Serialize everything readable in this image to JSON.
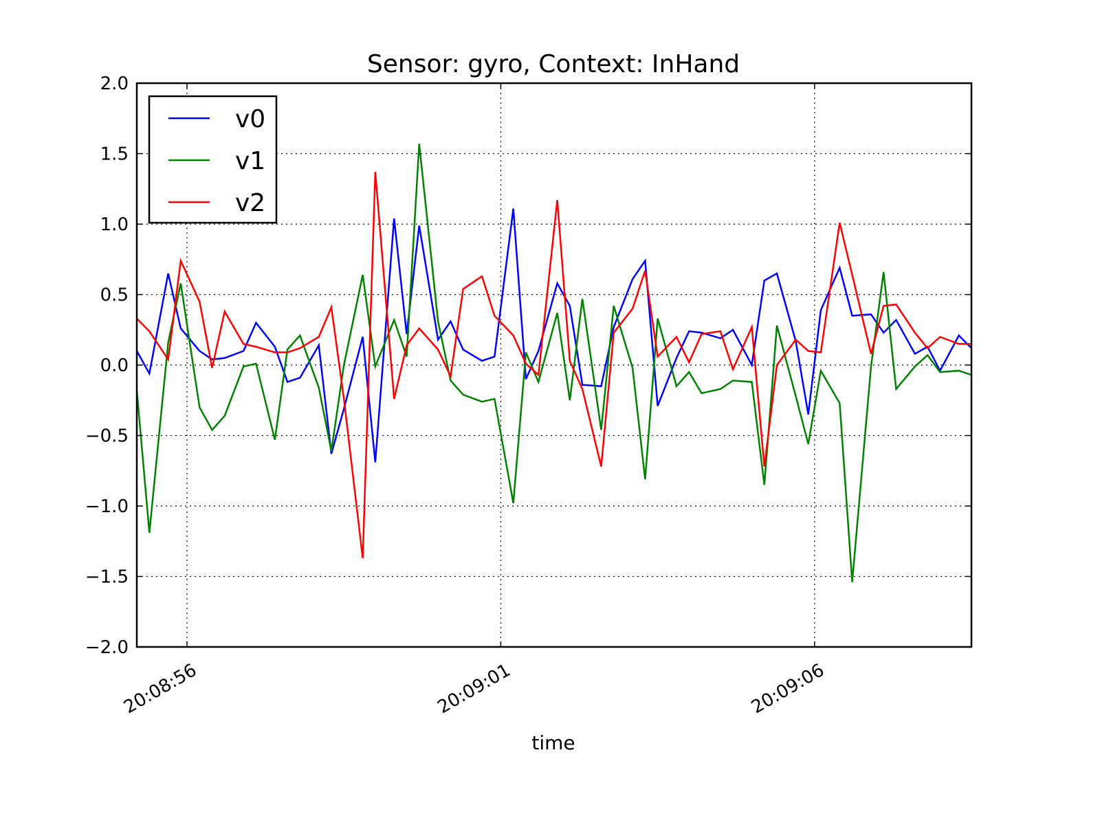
{
  "chart_data": {
    "type": "line",
    "title": "Sensor: gyro,  Context: InHand",
    "xlabel": "time",
    "ylabel": "",
    "ylim": [
      -2.0,
      2.0
    ],
    "yticks": [
      2.0,
      1.5,
      1.0,
      0.5,
      0.0,
      -0.5,
      -1.0,
      -1.5,
      -2.0
    ],
    "ytick_labels": [
      "2.0",
      "1.5",
      "1.0",
      "0.5",
      "0.0",
      "−0.5",
      "−1.0",
      "−1.5",
      "−2.0"
    ],
    "xlim": [
      "20:08:55.2",
      "20:09:08.5"
    ],
    "xticks": [
      "20:08:56",
      "20:09:01",
      "20:09:06"
    ],
    "grid": true,
    "legend_position": "top-left",
    "x": [
      "20:08:55.2",
      "20:08:55.4",
      "20:08:55.7",
      "20:08:55.9",
      "20:08:56.2",
      "20:08:56.4",
      "20:08:56.6",
      "20:08:56.9",
      "20:08:57.1",
      "20:08:57.4",
      "20:08:57.6",
      "20:08:57.8",
      "20:08:58.1",
      "20:08:58.3",
      "20:08:58.5",
      "20:08:58.8",
      "20:08:59.0",
      "20:08:59.3",
      "20:08:59.5",
      "20:08:59.7",
      "20:09:00.0",
      "20:09:00.2",
      "20:09:00.4",
      "20:09:00.7",
      "20:09:00.9",
      "20:09:01.2",
      "20:09:01.4",
      "20:09:01.6",
      "20:09:01.9",
      "20:09:02.1",
      "20:09:02.3",
      "20:09:02.6",
      "20:09:02.8",
      "20:09:03.1",
      "20:09:03.3",
      "20:09:03.5",
      "20:09:03.8",
      "20:09:04.0",
      "20:09:04.2",
      "20:09:04.5",
      "20:09:04.7",
      "20:09:05.0",
      "20:09:05.2",
      "20:09:05.4",
      "20:09:05.7",
      "20:09:05.9",
      "20:09:06.1",
      "20:09:06.4",
      "20:09:06.6",
      "20:09:06.9",
      "20:09:07.1",
      "20:09:07.3",
      "20:09:07.6",
      "20:09:07.8",
      "20:09:08.0",
      "20:09:08.3",
      "20:09:08.5"
    ],
    "series": [
      {
        "name": "v0",
        "color": "#0000ff",
        "values": [
          0.1,
          -0.06,
          0.65,
          0.26,
          0.1,
          0.04,
          0.05,
          0.1,
          0.3,
          0.13,
          -0.12,
          -0.09,
          0.14,
          -0.63,
          -0.31,
          0.2,
          -0.69,
          1.04,
          0.22,
          0.99,
          0.18,
          0.31,
          0.11,
          0.03,
          0.06,
          1.11,
          -0.1,
          0.1,
          0.58,
          0.42,
          -0.14,
          -0.15,
          0.27,
          0.61,
          0.74,
          -0.29,
          0.05,
          0.24,
          0.23,
          0.19,
          0.25,
          0.0,
          0.6,
          0.65,
          0.17,
          -0.35,
          0.39,
          0.69,
          0.35,
          0.36,
          0.23,
          0.32,
          0.08,
          0.13,
          -0.04,
          0.21,
          0.12
        ]
      },
      {
        "name": "v1",
        "color": "#008000",
        "values": [
          -0.18,
          -1.19,
          0.16,
          0.58,
          -0.3,
          -0.46,
          -0.36,
          -0.01,
          0.01,
          -0.53,
          0.11,
          0.21,
          -0.16,
          -0.61,
          0.0,
          0.64,
          -0.01,
          0.32,
          0.06,
          1.57,
          0.31,
          -0.11,
          -0.21,
          -0.26,
          -0.24,
          -0.98,
          0.09,
          -0.12,
          0.37,
          -0.25,
          0.47,
          -0.46,
          0.42,
          -0.02,
          -0.81,
          0.33,
          -0.15,
          -0.05,
          -0.2,
          -0.17,
          -0.11,
          -0.12,
          -0.85,
          0.28,
          -0.22,
          -0.56,
          -0.04,
          -0.27,
          -1.54,
          -0.01,
          0.66,
          -0.17,
          -0.01,
          0.07,
          -0.05,
          -0.04,
          -0.07
        ]
      },
      {
        "name": "v2",
        "color": "#ff0000",
        "values": [
          0.33,
          0.24,
          0.04,
          0.74,
          0.45,
          -0.02,
          0.38,
          0.15,
          0.13,
          0.09,
          0.09,
          0.12,
          0.2,
          0.41,
          -0.24,
          -1.37,
          1.37,
          -0.24,
          0.14,
          0.26,
          0.11,
          -0.08,
          0.54,
          0.63,
          0.35,
          0.21,
          0.01,
          -0.07,
          1.17,
          0.03,
          -0.17,
          -0.72,
          0.23,
          0.4,
          0.67,
          0.06,
          0.2,
          0.02,
          0.22,
          0.24,
          -0.03,
          0.27,
          -0.72,
          0.0,
          0.18,
          0.1,
          0.09,
          1.01,
          0.64,
          0.08,
          0.42,
          0.43,
          0.23,
          0.12,
          0.2,
          0.15,
          0.15
        ]
      }
    ]
  }
}
